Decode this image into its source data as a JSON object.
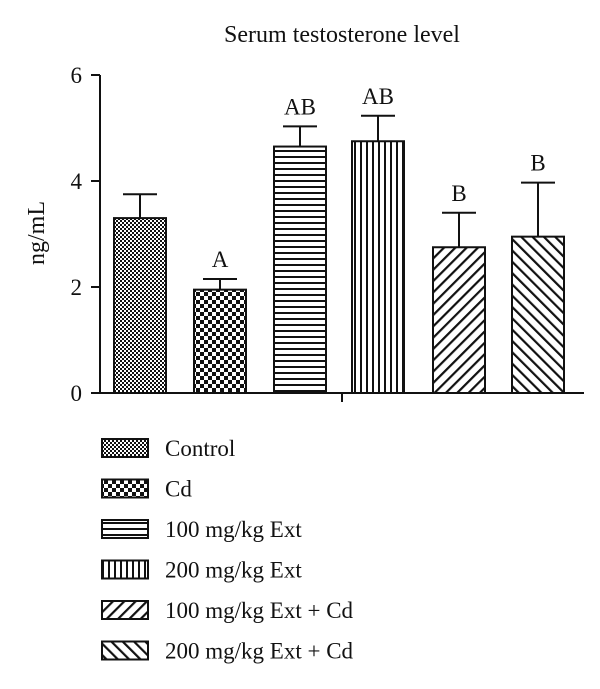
{
  "chart_data": {
    "type": "bar",
    "title": "Serum testosterone level",
    "xlabel": "",
    "ylabel": "ng/mL",
    "ylim": [
      0,
      6
    ],
    "yticks": [
      "0",
      "2",
      "4",
      "6"
    ],
    "legend_position": "bottom",
    "grid": false,
    "categories": [
      "Control",
      "Cd",
      "100 mg/kg Ext",
      "200 mg/kg Ext",
      "100 mg/kg Ext + Cd",
      "200 mg/kg Ext + Cd"
    ],
    "values": [
      3.3,
      1.95,
      4.65,
      4.75,
      2.75,
      2.95
    ],
    "error": [
      0.45,
      0.2,
      0.38,
      0.48,
      0.65,
      1.02
    ],
    "annotations": [
      "",
      "A",
      "AB",
      "AB",
      "B",
      "B"
    ],
    "patterns": [
      "fine-grid",
      "checker",
      "horizontal-lines",
      "vertical-lines",
      "diagonal-up",
      "diagonal-down"
    ],
    "colors": {
      "bar_stroke": "#111111",
      "fill": "#111111",
      "background": "#ffffff"
    }
  }
}
